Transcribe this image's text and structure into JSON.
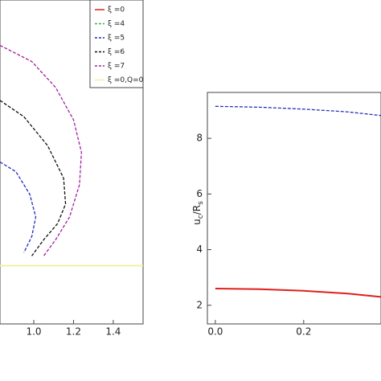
{
  "chart_data": [
    {
      "type": "line",
      "legend": "top-right",
      "xlim": [
        0.83,
        1.55
      ],
      "ylim": [
        0,
        1
      ],
      "xticks": [
        {
          "value": 1.0,
          "label": "1.0"
        },
        {
          "value": 1.2,
          "label": "1.2"
        },
        {
          "value": 1.4,
          "label": "1.4"
        }
      ],
      "series": [
        {
          "name": "ξ =0",
          "color": "#e0201b",
          "style": "solid",
          "x": [],
          "values": []
        },
        {
          "name": "ξ =4",
          "color": "#3cb43c",
          "style": "dashed",
          "x": [],
          "values": []
        },
        {
          "name": "ξ =5",
          "color": "#1f2fb8",
          "style": "dashed",
          "x": [
            0.83,
            0.91,
            0.98,
            1.01,
            0.99,
            0.95
          ],
          "values": [
            0.5,
            0.47,
            0.4,
            0.33,
            0.27,
            0.22
          ]
        },
        {
          "name": "ξ =6",
          "color": "#111111",
          "style": "dashed",
          "x": [
            0.83,
            0.95,
            1.07,
            1.15,
            1.16,
            1.12,
            1.05,
            0.99
          ],
          "values": [
            0.69,
            0.64,
            0.55,
            0.45,
            0.37,
            0.31,
            0.26,
            0.21
          ]
        },
        {
          "name": "ξ =7",
          "color": "#a020a0",
          "style": "dashed",
          "x": [
            0.83,
            0.99,
            1.11,
            1.2,
            1.24,
            1.23,
            1.18,
            1.11,
            1.05
          ],
          "values": [
            0.86,
            0.81,
            0.73,
            0.63,
            0.53,
            0.43,
            0.33,
            0.26,
            0.21
          ]
        },
        {
          "name": "ξ =0,Q=0",
          "color": "#f0f0a0",
          "style": "solid",
          "x": [
            0.83,
            1.55
          ],
          "values": [
            0.18,
            0.18
          ]
        }
      ]
    },
    {
      "type": "line",
      "xlim": [
        -0.018,
        0.375
      ],
      "ylim": [
        1.33,
        9.65
      ],
      "xticks": [
        {
          "value": 0,
          "label": "0.0"
        },
        {
          "value": 0.2,
          "label": "0.2"
        }
      ],
      "yticks": [
        2,
        4,
        6,
        8
      ],
      "y_label": {
        "main": "u",
        "sub": "c",
        "main2": "/R",
        "sub2": "s"
      },
      "x": [
        0,
        0.1,
        0.2,
        0.3,
        0.375
      ],
      "series": [
        {
          "color": "#1f2fb8",
          "style": "dashed",
          "values": [
            9.15,
            9.12,
            9.05,
            8.95,
            8.82
          ]
        },
        {
          "color": "#e0201b",
          "style": "solid",
          "values": [
            2.6,
            2.58,
            2.52,
            2.42,
            2.3
          ]
        }
      ]
    }
  ]
}
